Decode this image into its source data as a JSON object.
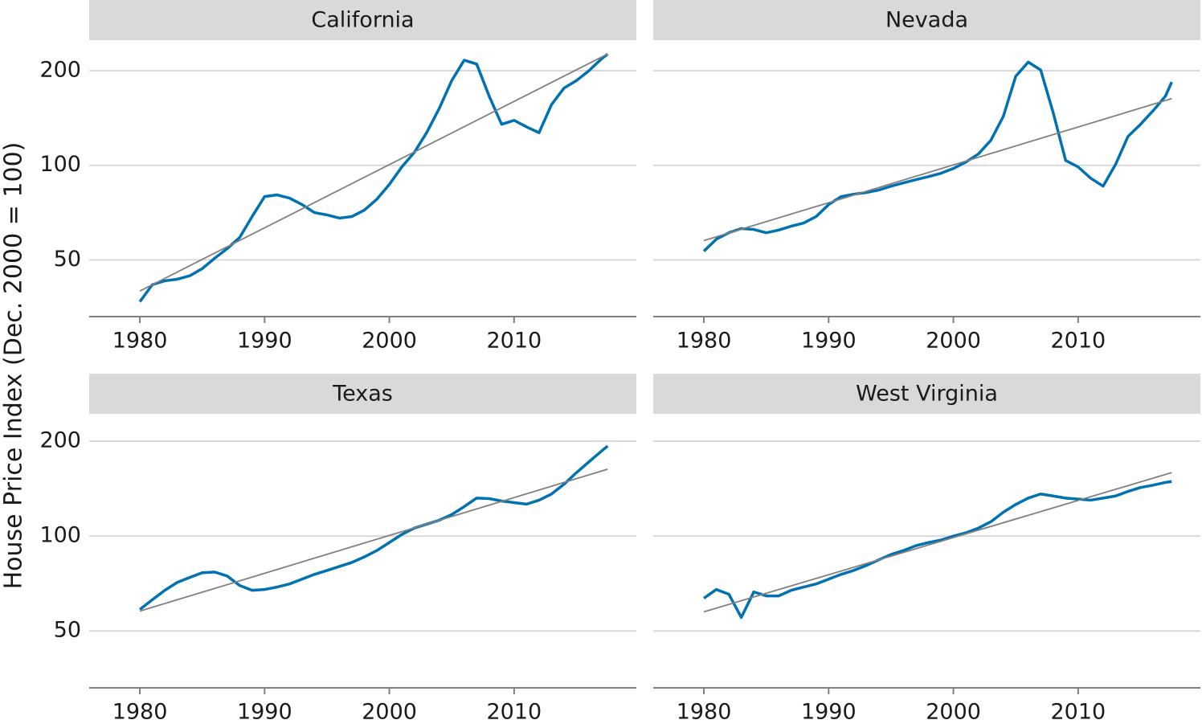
{
  "ylabel": "House Price Index (Dec. 2000 = 100)",
  "chart_data": [
    {
      "type": "line",
      "title": "California",
      "log_y": true,
      "grid": true,
      "ytick_labels": true,
      "xlim": [
        1978,
        2019.8
      ],
      "xticks": [
        1980,
        1990,
        2000,
        2010
      ],
      "ylim": [
        33,
        240
      ],
      "yticks": [
        50,
        100,
        200
      ],
      "series": [
        {
          "color": "#0072b2",
          "x": [
            1980,
            1981,
            1982,
            1983,
            1984,
            1985,
            1986,
            1987,
            1988,
            1989,
            1990,
            1991,
            1992,
            1993,
            1994,
            1995,
            1996,
            1997,
            1998,
            1999,
            2000,
            2001,
            2002,
            2003,
            2004,
            2005,
            2006,
            2007,
            2008,
            2009,
            2010,
            2011,
            2012,
            2013,
            2014,
            2015,
            2016,
            2017,
            2017.5
          ],
          "values": [
            36.8,
            41.7,
            42.9,
            43.4,
            44.5,
            46.9,
            50.6,
            54.3,
            58.9,
            68.7,
            79.5,
            80.5,
            78.6,
            75,
            70.7,
            69.5,
            67.9,
            68.7,
            72,
            78,
            86.9,
            98.8,
            109.9,
            127.2,
            151.7,
            186,
            216,
            210,
            166,
            135,
            139,
            132.5,
            127,
            156,
            176,
            186,
            200,
            218,
            226
          ]
        },
        {
          "color": "#808080",
          "x": [
            1980,
            2017.5
          ],
          "values": [
            39.8,
            226
          ]
        }
      ]
    },
    {
      "type": "line",
      "title": "Nevada",
      "log_y": true,
      "grid": true,
      "ytick_labels": false,
      "xlim": [
        1978,
        2019.8
      ],
      "xticks": [
        1980,
        1990,
        2000,
        2010
      ],
      "ylim": [
        33,
        240
      ],
      "yticks": [
        50,
        100,
        200
      ],
      "series": [
        {
          "color": "#0072b2",
          "x": [
            1980,
            1981,
            1982,
            1983,
            1984,
            1985,
            1986,
            1987,
            1988,
            1989,
            1990,
            1991,
            1992,
            1993,
            1994,
            1995,
            1996,
            1997,
            1998,
            1999,
            2000,
            2001,
            2002,
            2003,
            2004,
            2005,
            2006,
            2007,
            2008,
            2009,
            2010,
            2011,
            2012,
            2013,
            2014,
            2015,
            2016,
            2017,
            2017.5
          ],
          "values": [
            53.3,
            58.2,
            61,
            62.9,
            62.5,
            61,
            62.2,
            64,
            65.5,
            68.7,
            75,
            79.5,
            80.9,
            81.9,
            83.4,
            85.8,
            87.9,
            90,
            92,
            94.3,
            97.7,
            102.4,
            108.6,
            120,
            143,
            192,
            213,
            201,
            147,
            103.6,
            98.8,
            91,
            85.8,
            100.6,
            123.6,
            135,
            149,
            166,
            184
          ]
        },
        {
          "color": "#808080",
          "x": [
            1980,
            2017.5
          ],
          "values": [
            57.6,
            163
          ]
        }
      ]
    },
    {
      "type": "line",
      "title": "Texas",
      "log_y": true,
      "grid": true,
      "ytick_labels": true,
      "xlim": [
        1978,
        2019.8
      ],
      "xticks": [
        1980,
        1990,
        2000,
        2010
      ],
      "ylim": [
        33,
        240
      ],
      "yticks": [
        50,
        100,
        200
      ],
      "series": [
        {
          "color": "#0072b2",
          "x": [
            1980,
            1981,
            1982,
            1983,
            1984,
            1985,
            1986,
            1987,
            1988,
            1989,
            1990,
            1991,
            1992,
            1993,
            1994,
            1995,
            1996,
            1997,
            1998,
            1999,
            2000,
            2001,
            2002,
            2003,
            2004,
            2005,
            2006,
            2007,
            2008,
            2009,
            2010,
            2011,
            2012,
            2013,
            2014,
            2015,
            2016,
            2017,
            2017.5
          ],
          "values": [
            58.5,
            62.8,
            67.3,
            71.3,
            73.9,
            76.5,
            76.9,
            74.7,
            69.7,
            67.3,
            67.7,
            68.9,
            70.5,
            73,
            75.6,
            77.8,
            80.1,
            82.5,
            85.9,
            90,
            95.4,
            101.2,
            106,
            109.1,
            112.3,
            117,
            124,
            132,
            131.5,
            129.2,
            127.7,
            126.3,
            130,
            136,
            146,
            159,
            172,
            186,
            193
          ]
        },
        {
          "color": "#808080",
          "x": [
            1980,
            2017.5
          ],
          "values": [
            57.8,
            163
          ]
        }
      ]
    },
    {
      "type": "line",
      "title": "West Virginia",
      "log_y": true,
      "grid": true,
      "ytick_labels": false,
      "xlim": [
        1978,
        2019.8
      ],
      "xticks": [
        1980,
        1990,
        2000,
        2010
      ],
      "ylim": [
        33,
        240
      ],
      "yticks": [
        50,
        100,
        200
      ],
      "series": [
        {
          "color": "#0072b2",
          "x": [
            1980,
            1981,
            1982,
            1983,
            1984,
            1985,
            1986,
            1987,
            1988,
            1989,
            1990,
            1991,
            1992,
            1993,
            1994,
            1995,
            1996,
            1997,
            1998,
            1999,
            2000,
            2001,
            2002,
            2003,
            2004,
            2005,
            2006,
            2007,
            2008,
            2009,
            2010,
            2011,
            2012,
            2013,
            2014,
            2015,
            2016,
            2017,
            2017.5
          ],
          "values": [
            63.5,
            67.7,
            65.4,
            55.2,
            66.5,
            64.6,
            64.6,
            67.3,
            68.9,
            70.5,
            73,
            75.6,
            77.8,
            80.6,
            84,
            87.4,
            90,
            93.2,
            95.4,
            97.1,
            100,
            102.4,
            106,
            111,
            119,
            126,
            132,
            136,
            134,
            132,
            131,
            130,
            132,
            134,
            138.6,
            142.6,
            145,
            148,
            149
          ]
        },
        {
          "color": "#808080",
          "x": [
            1980,
            2017.5
          ],
          "values": [
            57.5,
            159
          ]
        }
      ]
    }
  ]
}
